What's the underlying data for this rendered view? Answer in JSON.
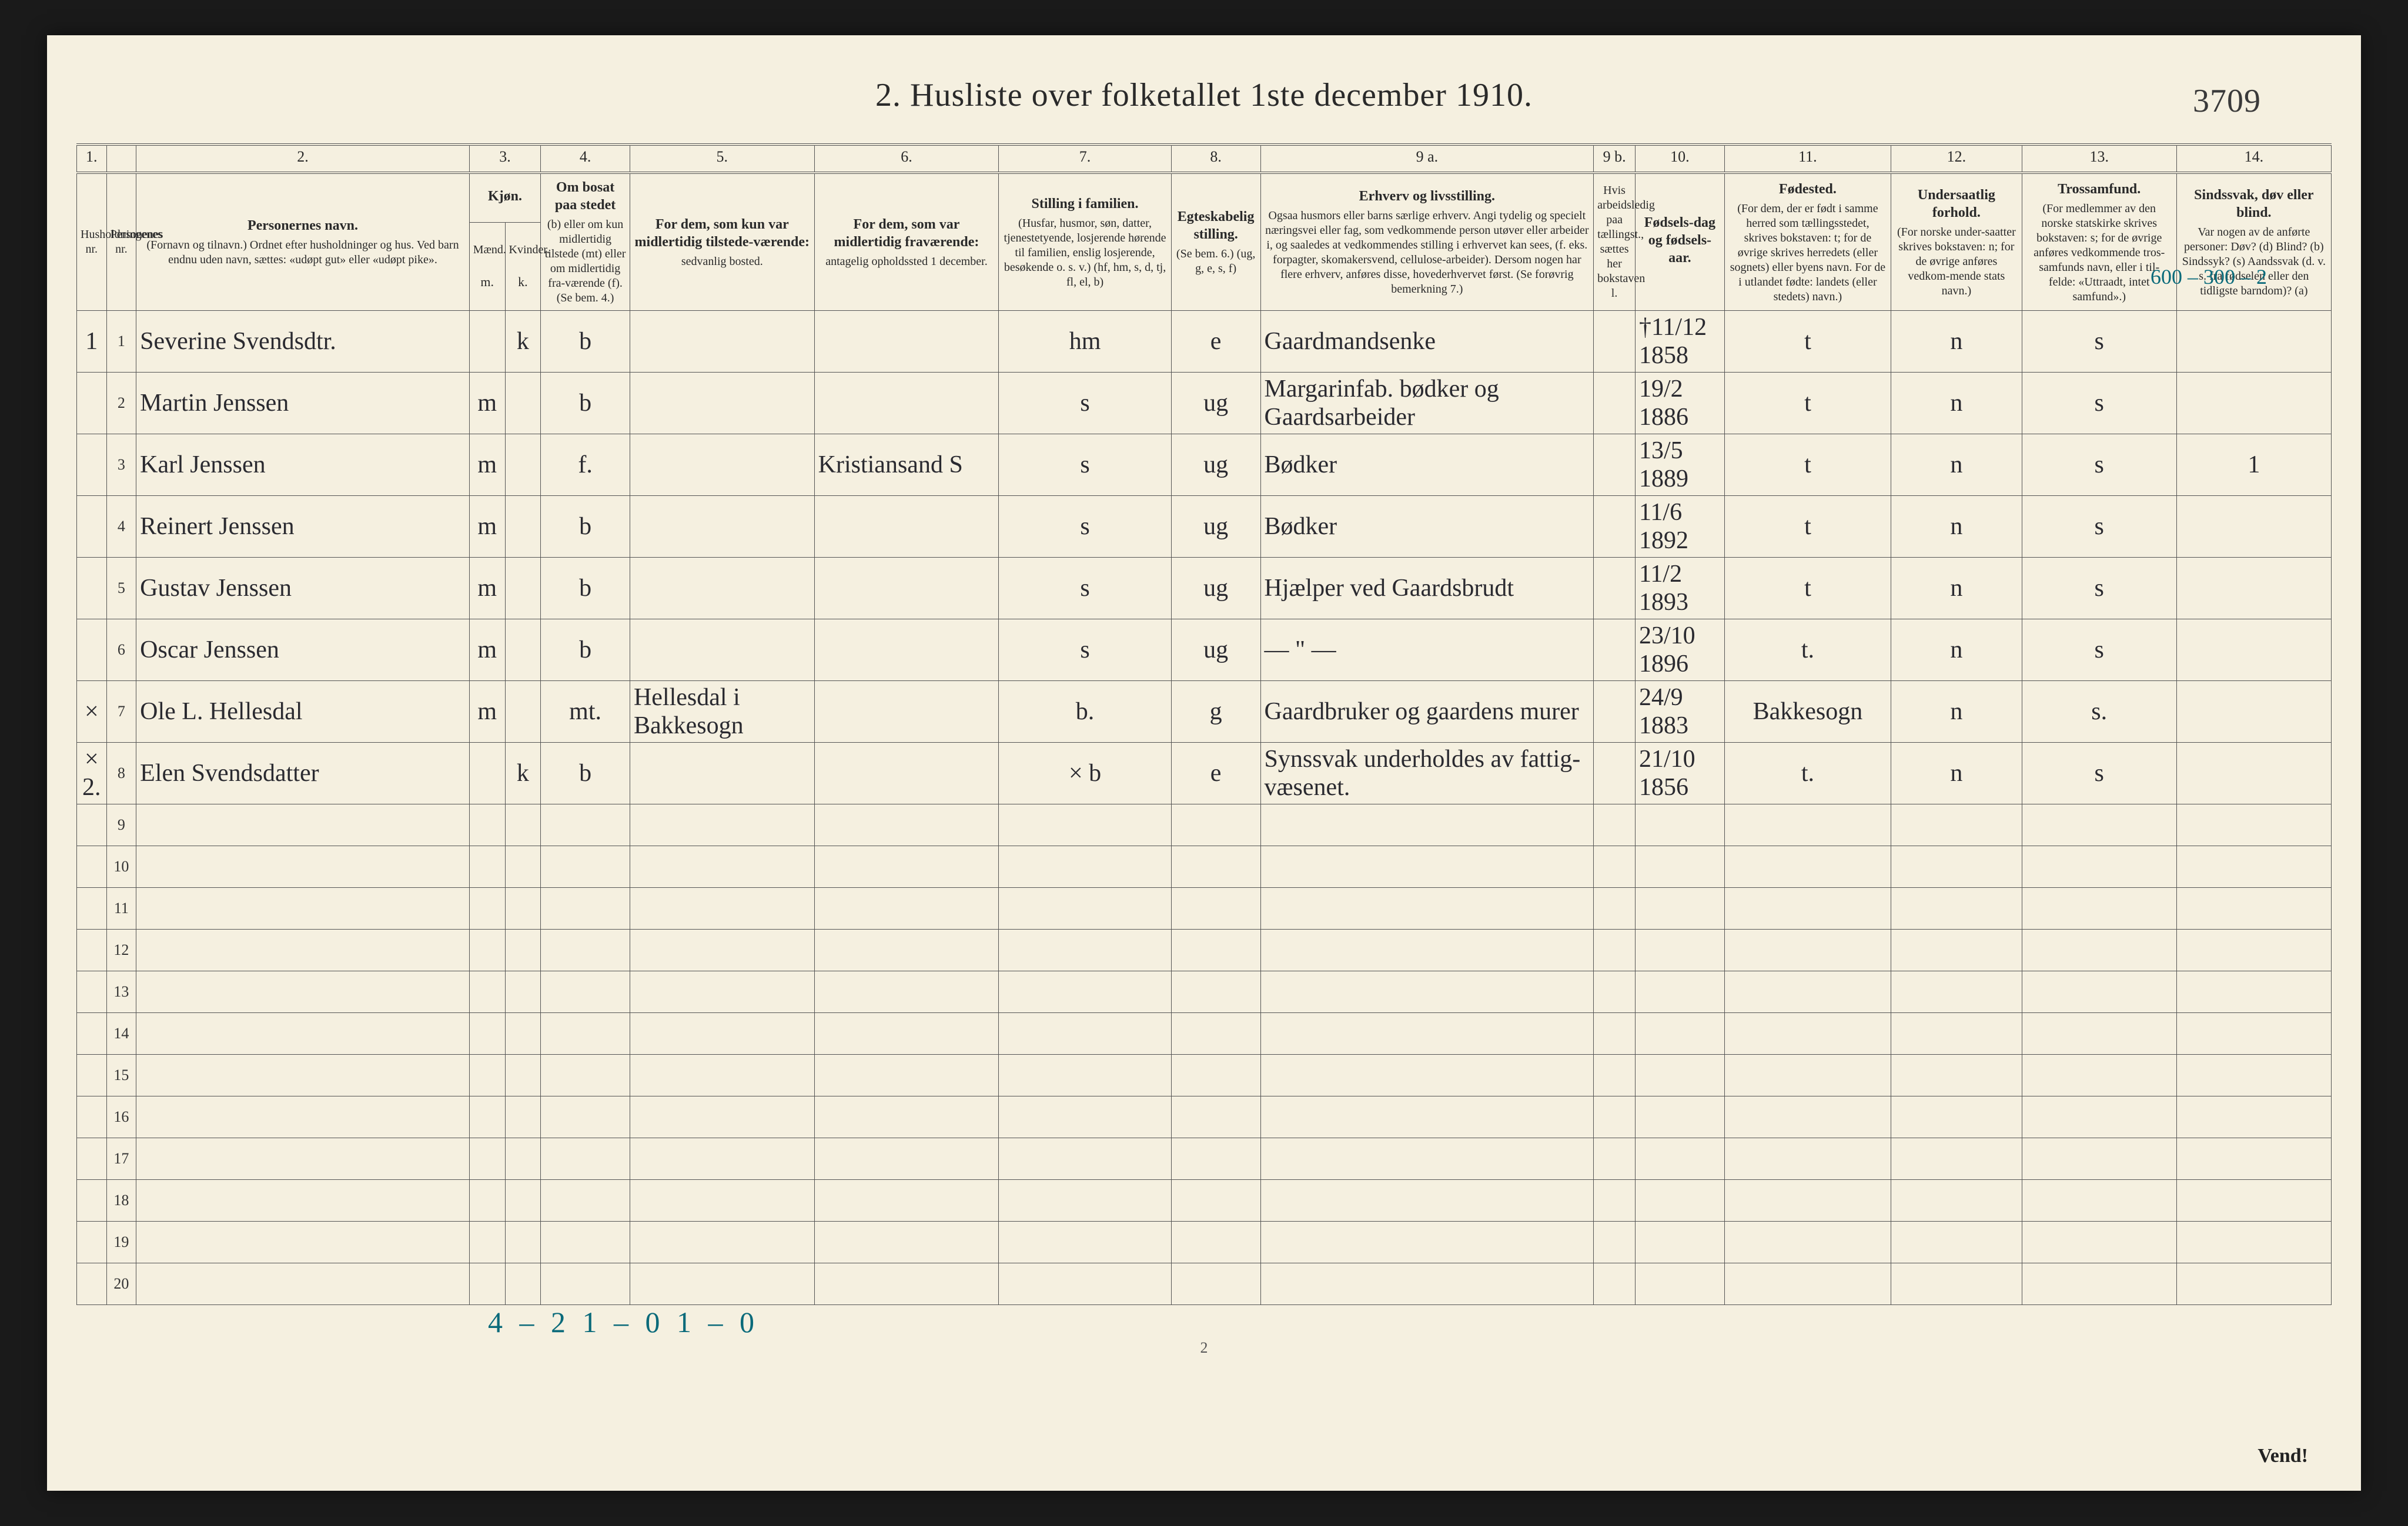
{
  "title": "2.  Husliste over folketallet 1ste december 1910.",
  "page_id_handwritten": "3709",
  "top_right_annot": "600 – 300 – 2",
  "columns": {
    "numbers": [
      "1.",
      "",
      "2.",
      "3.",
      "",
      "4.",
      "5.",
      "6.",
      "7.",
      "8.",
      "9 a.",
      "9 b.",
      "10.",
      "11.",
      "12.",
      "13.",
      "14."
    ],
    "headers": [
      {
        "title": "Husholdningenes nr.",
        "sub": ""
      },
      {
        "title": "Personenes nr.",
        "sub": ""
      },
      {
        "title": "Personernes navn.",
        "sub": "(Fornavn og tilnavn.)\nOrdnet efter husholdninger og hus.\nVed barn endnu uden navn, sættes: «udøpt gut» eller «udøpt pike»."
      },
      {
        "title": "Kjøn.",
        "sub": "Mænd."
      },
      {
        "title": "",
        "sub": "Kvinder."
      },
      {
        "title": "Om bosat paa stedet",
        "sub": "(b) eller om kun midlertidig tilstede (mt) eller om midlertidig fra-værende (f).\n(Se bem. 4.)"
      },
      {
        "title": "For dem, som kun var midlertidig tilstede-værende:",
        "sub": "sedvanlig bosted."
      },
      {
        "title": "For dem, som var midlertidig fraværende:",
        "sub": "antagelig opholdssted 1 december."
      },
      {
        "title": "Stilling i familien.",
        "sub": "(Husfar, husmor, søn, datter, tjenestetyende, losjerende hørende til familien, enslig losjerende, besøkende o. s. v.)\n(hf, hm, s, d, tj, fl, el, b)"
      },
      {
        "title": "Egteskabelig stilling.",
        "sub": "(Se bem. 6.)\n(ug, g, e, s, f)"
      },
      {
        "title": "Erhverv og livsstilling.",
        "sub": "Ogsaa husmors eller barns særlige erhverv. Angi tydelig og specielt næringsvei eller fag, som vedkommende person utøver eller arbeider i, og saaledes at vedkommendes stilling i erhvervet kan sees, (f. eks. forpagter, skomakersvend, cellulose-arbeider). Dersom nogen har flere erhverv, anføres disse, hovederhvervet først.\n(Se forøvrig bemerkning 7.)"
      },
      {
        "title": "",
        "sub": "Hvis arbeidsledig paa tællingst., sættes her bokstaven l."
      },
      {
        "title": "Fødsels-dag og fødsels-aar.",
        "sub": ""
      },
      {
        "title": "Fødested.",
        "sub": "(For dem, der er født i samme herred som tællingsstedet, skrives bokstaven: t; for de øvrige skrives herredets (eller sognets) eller byens navn. For de i utlandet fødte: landets (eller stedets) navn.)"
      },
      {
        "title": "Undersaatlig forhold.",
        "sub": "(For norske under-saatter skrives bokstaven: n; for de øvrige anføres vedkom-mende stats navn.)"
      },
      {
        "title": "Trossamfund.",
        "sub": "(For medlemmer av den norske statskirke skrives bokstaven: s; for de øvrige anføres vedkommende tros-samfunds navn, eller i til-felde: «Uttraadt, intet samfund».)"
      },
      {
        "title": "Sindssvak, døv eller blind.",
        "sub": "Var nogen av de anførte personer:\nDøv? (d)\nBlind? (b)\nSindssyk? (s)\nAandssvak (d. v. s. fra fødselen eller den tidligste barndom)? (a)"
      }
    ],
    "subheader_mk": {
      "m_label": "m.",
      "k_label": "k."
    }
  },
  "rows": [
    {
      "hh": "1",
      "pn": "1",
      "name": "Severine Svendsdtr.",
      "m": "",
      "k": "k",
      "res": "b",
      "bosted": "",
      "opphold": "",
      "fam": "hm",
      "egte": "e",
      "erhverv": "Gaardmandsenke",
      "l": "",
      "fdato": "†11/12 1858",
      "fsted": "t",
      "unders": "n",
      "tros": "s",
      "sind": ""
    },
    {
      "hh": "",
      "pn": "2",
      "name": "Martin Jenssen",
      "m": "m",
      "k": "",
      "res": "b",
      "bosted": "",
      "opphold": "",
      "fam": "s",
      "egte": "ug",
      "erhverv": "Margarinfab. bødker og Gaardsarbeider",
      "l": "",
      "fdato": "19/2 1886",
      "fsted": "t",
      "unders": "n",
      "tros": "s",
      "sind": ""
    },
    {
      "hh": "",
      "pn": "3",
      "name": "Karl Jenssen",
      "m": "m",
      "k": "",
      "res": "f.",
      "bosted": "",
      "opphold": "Kristiansand S",
      "fam": "s",
      "egte": "ug",
      "erhverv": "Bødker",
      "l": "",
      "fdato": "13/5 1889",
      "fsted": "t",
      "unders": "n",
      "tros": "s",
      "sind": "1"
    },
    {
      "hh": "",
      "pn": "4",
      "name": "Reinert Jenssen",
      "m": "m",
      "k": "",
      "res": "b",
      "bosted": "",
      "opphold": "",
      "fam": "s",
      "egte": "ug",
      "erhverv": "Bødker",
      "l": "",
      "fdato": "11/6 1892",
      "fsted": "t",
      "unders": "n",
      "tros": "s",
      "sind": ""
    },
    {
      "hh": "",
      "pn": "5",
      "name": "Gustav Jenssen",
      "m": "m",
      "k": "",
      "res": "b",
      "bosted": "",
      "opphold": "",
      "fam": "s",
      "egte": "ug",
      "erhverv": "Hjælper ved Gaardsbrudt",
      "l": "",
      "fdato": "11/2 1893",
      "fsted": "t",
      "unders": "n",
      "tros": "s",
      "sind": ""
    },
    {
      "hh": "",
      "pn": "6",
      "name": "Oscar Jenssen",
      "m": "m",
      "k": "",
      "res": "b",
      "bosted": "",
      "opphold": "",
      "fam": "s",
      "egte": "ug",
      "erhverv": "— \" —",
      "l": "",
      "fdato": "23/10 1896",
      "fsted": "t.",
      "unders": "n",
      "tros": "s",
      "sind": ""
    },
    {
      "hh": "×",
      "pn": "7",
      "name": "Ole L. Hellesdal",
      "m": "m",
      "k": "",
      "res": "mt.",
      "bosted": "Hellesdal i Bakkesogn",
      "opphold": "",
      "fam": "b.",
      "egte": "g",
      "erhverv": "Gaardbruker og gaardens murer",
      "l": "",
      "fdato": "24/9 1883",
      "fsted": "Bakkesogn",
      "unders": "n",
      "tros": "s.",
      "sind": ""
    },
    {
      "hh": "× 2.",
      "pn": "8",
      "name": "Elen Svendsdatter",
      "m": "",
      "k": "k",
      "res": "b",
      "bosted": "",
      "opphold": "",
      "fam": "× b",
      "egte": "e",
      "erhverv": "Synssvak underholdes av fattig-væsenet.",
      "l": "",
      "fdato": "21/10 1856",
      "fsted": "t.",
      "unders": "n",
      "tros": "s",
      "sind": ""
    }
  ],
  "empty_row_numbers": [
    "9",
    "10",
    "11",
    "12",
    "13",
    "14",
    "15",
    "16",
    "17",
    "18",
    "19",
    "20"
  ],
  "bottom_handwritten": "4 – 2   1 – 0       1 – 0",
  "page_number_printed": "2",
  "vend": "Vend!"
}
